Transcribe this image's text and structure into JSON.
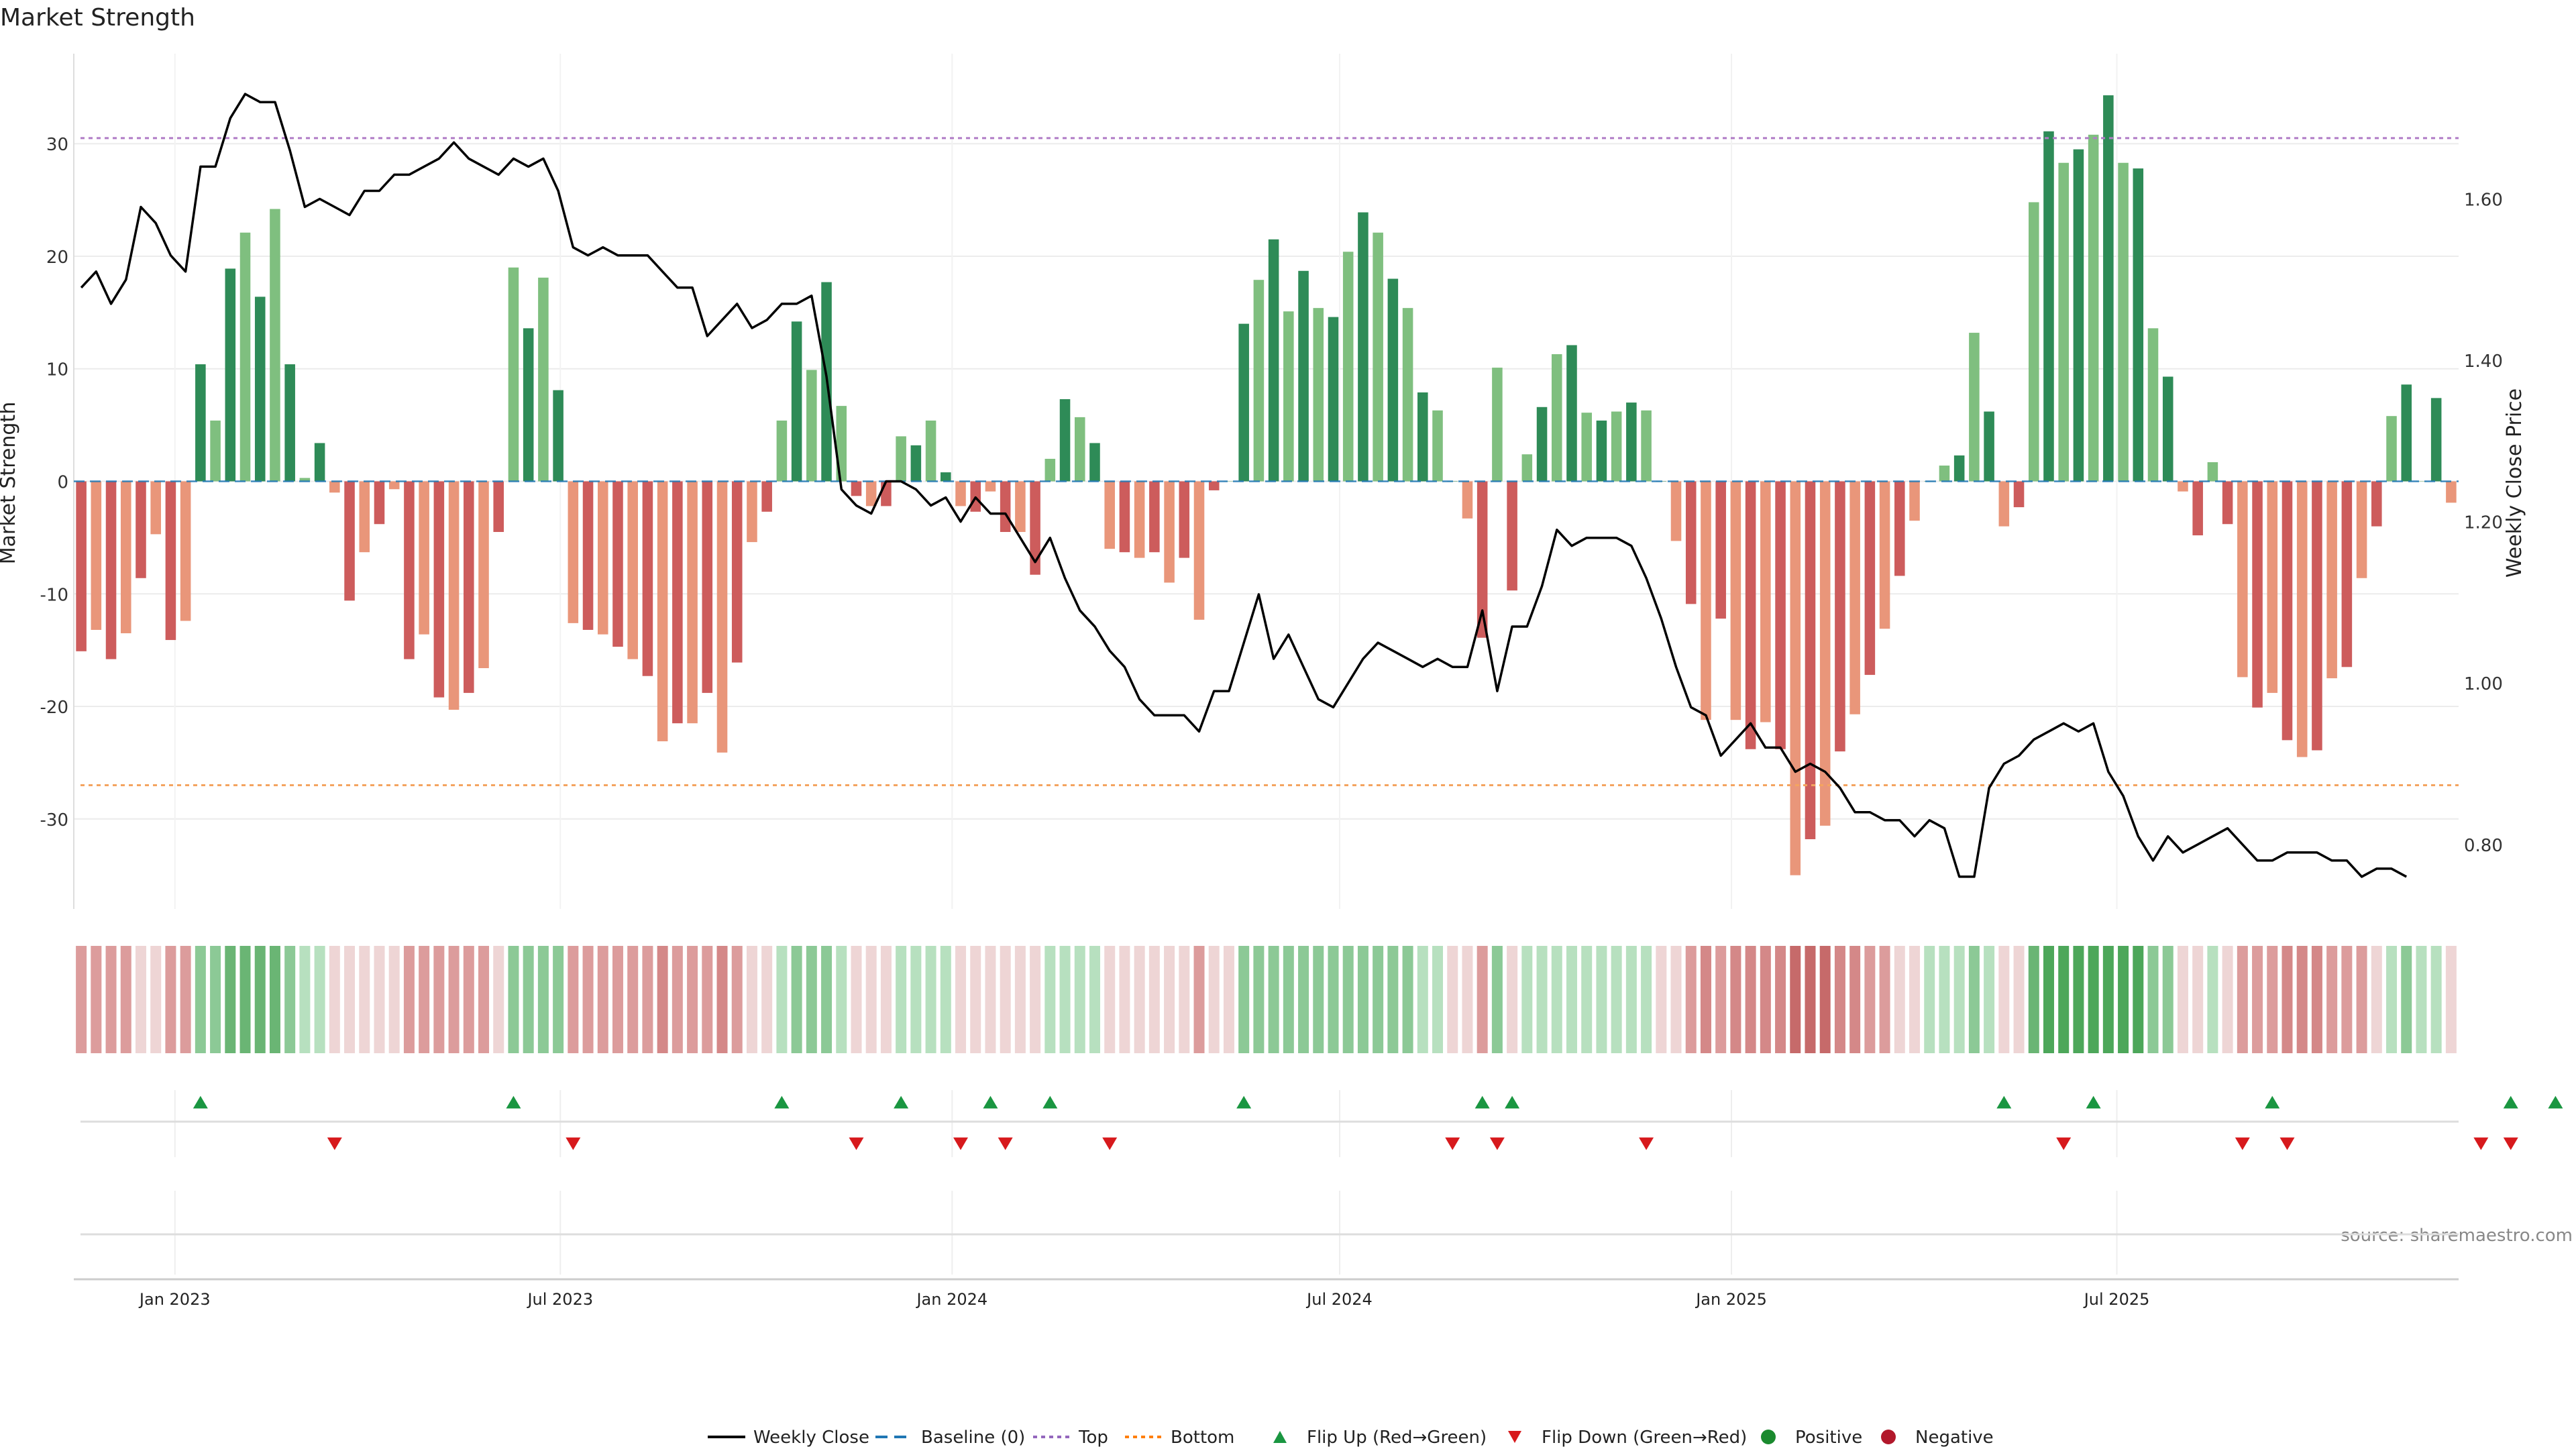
{
  "chart_data": {
    "type": "bar",
    "title": "Market Strength",
    "ylabel": "Market Strength",
    "y2label": "Weekly Close Price",
    "ylim": [
      -38,
      38
    ],
    "y2lim": [
      0.72,
      1.78
    ],
    "yticks": [
      -30,
      -20,
      -10,
      0,
      10,
      20,
      30
    ],
    "y2ticks": [
      "0.80",
      "1.00",
      "1.20",
      "1.40",
      "1.60"
    ],
    "top_level": 30.5,
    "bottom_level": -27,
    "start_date": "2022-11-18",
    "xticks": [
      {
        "label": "Jan 2023",
        "date": "2023-01-01"
      },
      {
        "label": "Jul 2023",
        "date": "2023-07-01"
      },
      {
        "label": "Jan 2024",
        "date": "2024-01-01"
      },
      {
        "label": "Jul 2024",
        "date": "2024-07-01"
      },
      {
        "label": "Jan 2025",
        "date": "2025-01-01"
      },
      {
        "label": "Jul 2025",
        "date": "2025-07-01"
      }
    ],
    "strength": [
      -15.1,
      -13.2,
      -15.8,
      -13.5,
      -8.6,
      -4.7,
      -14.1,
      -12.4,
      10.4,
      5.4,
      18.9,
      22.1,
      16.4,
      24.2,
      10.4,
      0.3,
      3.4,
      -1,
      -10.6,
      -6.3,
      -3.8,
      -0.7,
      -15.8,
      -13.6,
      -19.2,
      -20.3,
      -18.8,
      -16.6,
      -4.5,
      19,
      13.6,
      18.1,
      8.1,
      -12.6,
      -13.2,
      -13.6,
      -14.7,
      -15.8,
      -17.3,
      -23.1,
      -21.5,
      -21.5,
      -18.8,
      -24.1,
      -16.1,
      -5.4,
      -2.7,
      5.4,
      14.2,
      9.9,
      17.7,
      6.7,
      -1.3,
      -2.2,
      -2.2,
      4,
      3.2,
      5.4,
      0.8,
      -2.2,
      -2.7,
      -0.9,
      -4.5,
      -4.5,
      -8.3,
      2,
      7.3,
      5.7,
      3.4,
      -6,
      -6.3,
      -6.8,
      -6.3,
      -9,
      -6.8,
      -12.3,
      -0.8,
      0,
      14,
      17.9,
      21.5,
      15.1,
      18.7,
      15.4,
      14.6,
      20.4,
      23.9,
      22.1,
      18,
      15.4,
      7.9,
      6.3,
      0,
      -3.3,
      -13.9,
      10.1,
      -9.7,
      2.4,
      6.6,
      11.3,
      12.1,
      6.1,
      5.4,
      6.2,
      7,
      6.3,
      0,
      -5.3,
      -10.9,
      -21.2,
      -12.2,
      -21.2,
      -23.8,
      -21.4,
      -23.8,
      -35,
      -31.8,
      -30.6,
      -24,
      -20.7,
      -17.2,
      -13.1,
      -8.4,
      -3.5,
      0,
      1.4,
      2.3,
      13.2,
      6.2,
      -4,
      -2.3,
      24.8,
      31.1,
      28.3,
      29.5,
      30.8,
      34.3,
      28.3,
      27.8,
      13.6,
      9.3,
      -0.9,
      -4.8,
      1.7,
      -3.8,
      -17.4,
      -20.1,
      -18.8,
      -23,
      -24.5,
      -23.9,
      -17.5,
      -16.5,
      -8.6,
      -4,
      5.8,
      8.6,
      0,
      7.4,
      -1.9
    ],
    "close": [
      1.49,
      1.51,
      1.47,
      1.5,
      1.59,
      1.57,
      1.53,
      1.51,
      1.64,
      1.64,
      1.7,
      1.73,
      1.72,
      1.72,
      1.66,
      1.59,
      1.6,
      1.59,
      1.58,
      1.61,
      1.61,
      1.63,
      1.63,
      1.64,
      1.65,
      1.67,
      1.65,
      1.64,
      1.63,
      1.65,
      1.64,
      1.65,
      1.61,
      1.54,
      1.53,
      1.54,
      1.53,
      1.53,
      1.53,
      1.51,
      1.49,
      1.49,
      1.43,
      1.45,
      1.47,
      1.44,
      1.45,
      1.47,
      1.47,
      1.48,
      1.38,
      1.24,
      1.22,
      1.21,
      1.25,
      1.25,
      1.24,
      1.22,
      1.23,
      1.2,
      1.23,
      1.21,
      1.21,
      1.18,
      1.15,
      1.18,
      1.13,
      1.09,
      1.07,
      1.04,
      1.02,
      0.98,
      0.96,
      0.96,
      0.96,
      0.94,
      0.99,
      0.99,
      1.05,
      1.11,
      1.03,
      1.06,
      1.02,
      0.98,
      0.97,
      1.0,
      1.03,
      1.05,
      1.04,
      1.03,
      1.02,
      1.03,
      1.02,
      1.02,
      1.09,
      0.99,
      1.07,
      1.07,
      1.12,
      1.19,
      1.17,
      1.18,
      1.18,
      1.18,
      1.17,
      1.13,
      1.08,
      1.02,
      0.97,
      0.96,
      0.91,
      0.93,
      0.95,
      0.92,
      0.92,
      0.89,
      0.9,
      0.89,
      0.87,
      0.84,
      0.84,
      0.83,
      0.83,
      0.81,
      0.83,
      0.82,
      0.76,
      0.76,
      0.87,
      0.9,
      0.91,
      0.93,
      0.94,
      0.95,
      0.94,
      0.95,
      0.89,
      0.86,
      0.81,
      0.78,
      0.81,
      0.79,
      0.8,
      0.81,
      0.82,
      0.8,
      0.78,
      0.78,
      0.79,
      0.79,
      0.79,
      0.78,
      0.78,
      0.76,
      0.77,
      0.77,
      0.76
    ],
    "heat": [
      -2,
      -2,
      -2,
      -2,
      -1,
      -1,
      -2,
      -2,
      2,
      2,
      3,
      3,
      3,
      3,
      2,
      1,
      1,
      -1,
      -1,
      -1,
      -1,
      -1,
      -2,
      -2,
      -2,
      -2,
      -2,
      -2,
      -1,
      2,
      2,
      2,
      2,
      -2,
      -2,
      -2,
      -2,
      -2,
      -2,
      -3,
      -2,
      -2,
      -2,
      -3,
      -2,
      -1,
      -1,
      1,
      2,
      2,
      2,
      1,
      -1,
      -1,
      -1,
      1,
      1,
      1,
      1,
      -1,
      -1,
      -1,
      -1,
      -1,
      -1,
      1,
      1,
      1,
      1,
      -1,
      -1,
      -1,
      -1,
      -1,
      -1,
      -2,
      -1,
      -1,
      2,
      2,
      2,
      2,
      2,
      2,
      2,
      2,
      2,
      2,
      2,
      2,
      1,
      1,
      -1,
      -1,
      -2,
      2,
      -1,
      1,
      1,
      1,
      1,
      1,
      1,
      1,
      1,
      1,
      -1,
      -1,
      -2,
      -3,
      -2,
      -3,
      -3,
      -3,
      -3,
      -4,
      -4,
      -4,
      -3,
      -3,
      -2,
      -2,
      -1,
      -1,
      1,
      1,
      1,
      2,
      1,
      -1,
      -1,
      3,
      4,
      4,
      4,
      4,
      4,
      4,
      4,
      2,
      2,
      -1,
      -1,
      1,
      -1,
      -2,
      -2,
      -2,
      -3,
      -3,
      -3,
      -2,
      -2,
      -2,
      -1,
      1,
      2,
      1,
      1,
      -1
    ],
    "flips_up": [
      8,
      29,
      47,
      55,
      61,
      65,
      78,
      94,
      96,
      129,
      135,
      147,
      163,
      166
    ],
    "flips_down": [
      17,
      33,
      52,
      59,
      62,
      69,
      92,
      95,
      105,
      133,
      145,
      148,
      161,
      163
    ],
    "legend": [
      {
        "label": "Weekly Close",
        "kind": "line",
        "color": "#000000"
      },
      {
        "label": "Baseline (0)",
        "kind": "dash",
        "color": "#1f77b4"
      },
      {
        "label": "Top",
        "kind": "dot",
        "color": "#9467bd"
      },
      {
        "label": "Bottom",
        "kind": "dot",
        "color": "#ff7f0e"
      },
      {
        "label": "Flip Up (Red→Green)",
        "kind": "tri-up",
        "color": "#1a9641"
      },
      {
        "label": "Flip Down (Green→Red)",
        "kind": "tri-down",
        "color": "#d7191c"
      },
      {
        "label": "Positive",
        "kind": "dot-marker",
        "color": "#1a8a2e"
      },
      {
        "label": "Negative",
        "kind": "dot-marker",
        "color": "#b2182b"
      }
    ],
    "legend_position": "bottom-center",
    "grid": true,
    "colors": {
      "pos_strong": "#2e8b57",
      "pos_weak": "#7fbf7f",
      "neg_strong": "#cd5c5c",
      "neg_weak": "#e9967a",
      "close_line": "#000000"
    }
  },
  "source_note": "source: sharemaestro.com"
}
